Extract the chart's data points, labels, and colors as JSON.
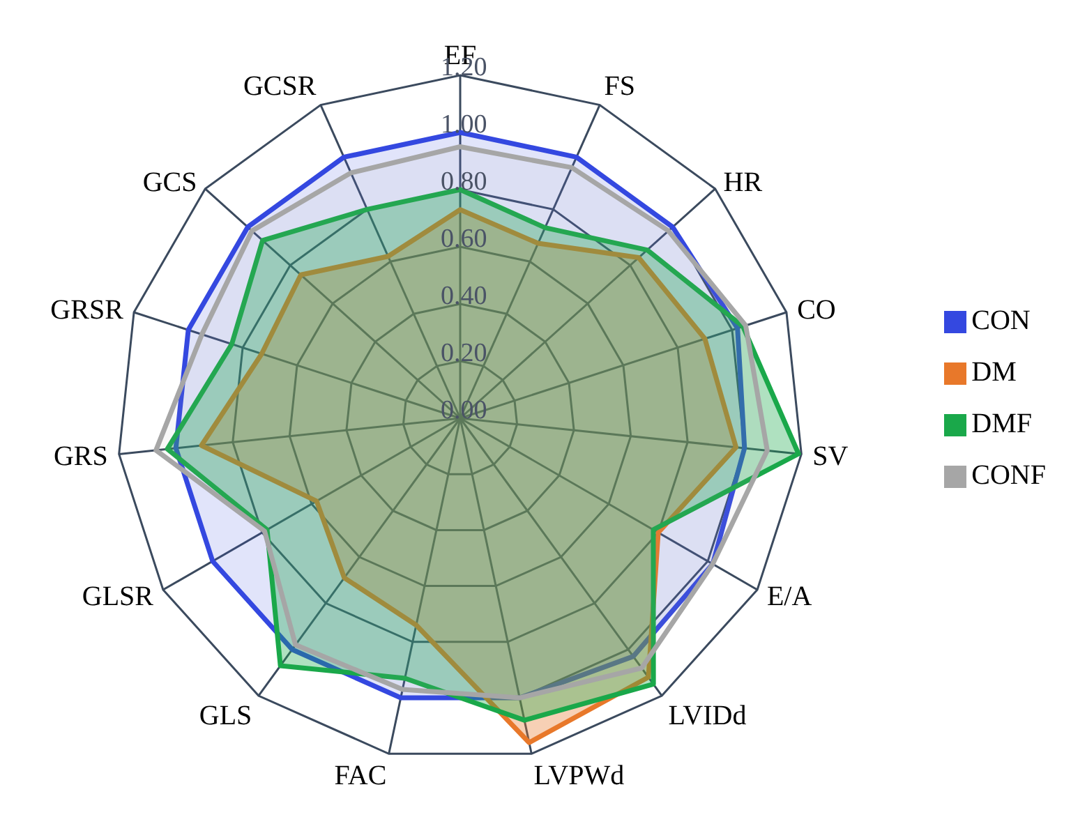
{
  "chart_data": {
    "type": "radar",
    "categories": [
      "EF",
      "FS",
      "HR",
      "CO",
      "SV",
      "E/A",
      "LVIDd",
      "LVPWd",
      "FAC",
      "GLS",
      "GLSR",
      "GRS",
      "GRSR",
      "GCS",
      "GCSR"
    ],
    "ylim": [
      0,
      1.2
    ],
    "yticks": [
      {
        "value": 0,
        "label": "0.00"
      },
      {
        "value": 0.2,
        "label": "0.20"
      },
      {
        "value": 0.4,
        "label": "0.40"
      },
      {
        "value": 0.6,
        "label": "0.60"
      },
      {
        "value": 0.8,
        "label": "0.80"
      },
      {
        "value": 1,
        "label": "1.00"
      },
      {
        "value": 1.2,
        "label": "1.20"
      }
    ],
    "grid": true,
    "legend": "right",
    "marker": "none",
    "series": [
      {
        "name": "CON",
        "color": "#3448e0",
        "values": [
          1,
          1,
          1,
          1.02,
          1,
          1.02,
          1.03,
          1,
          1,
          1,
          1,
          1,
          1,
          1,
          1
        ]
      },
      {
        "name": "DM",
        "color": "#e8782a",
        "values": [
          0.73,
          0.67,
          0.84,
          0.9,
          0.97,
          0.8,
          1.12,
          1.16,
          0.74,
          0.69,
          0.58,
          0.91,
          0.73,
          0.75,
          0.62
        ]
      },
      {
        "name": "DMF",
        "color": "#1aa84a",
        "values": [
          0.8,
          0.73,
          0.88,
          1.04,
          1.19,
          0.78,
          1.15,
          1.08,
          0.93,
          1.07,
          0.78,
          1.03,
          0.84,
          0.93,
          0.8
        ]
      },
      {
        "name": "CONF",
        "color": "#a6a6a6",
        "values": [
          0.95,
          0.96,
          0.98,
          1.05,
          1.08,
          1.02,
          1.08,
          1,
          0.97,
          0.98,
          0.79,
          1.07,
          0.95,
          0.98,
          0.94
        ]
      }
    ]
  }
}
